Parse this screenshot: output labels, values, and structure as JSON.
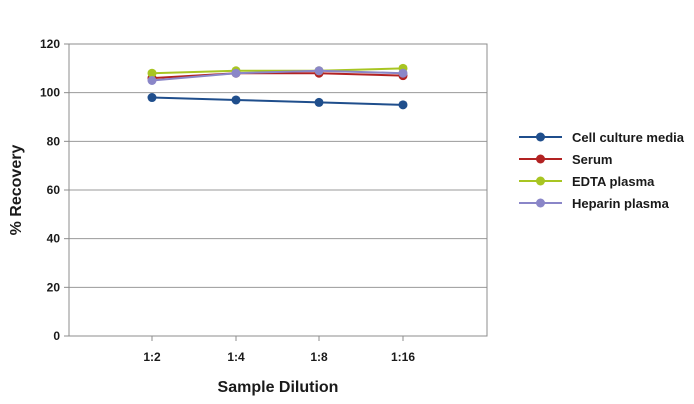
{
  "chart_data": {
    "type": "line",
    "title": "",
    "xlabel": "Sample Dilution",
    "ylabel": "% Recovery",
    "categories": [
      "1:2",
      "1:4",
      "1:8",
      "1:16"
    ],
    "ylim": [
      0,
      120
    ],
    "yticks": [
      "0",
      "20",
      "40",
      "60",
      "80",
      "100",
      "120"
    ],
    "grid": "horizontal",
    "legend_position": "right",
    "series": [
      {
        "name": "Cell culture media",
        "color": "#1f4e8c",
        "values": [
          98,
          97,
          96,
          95
        ]
      },
      {
        "name": "Serum",
        "color": "#b22222",
        "values": [
          106,
          108,
          108,
          107
        ]
      },
      {
        "name": "EDTA plasma",
        "color": "#a8c522",
        "values": [
          108,
          109,
          109,
          110
        ]
      },
      {
        "name": "Heparin plasma",
        "color": "#8a86c8",
        "values": [
          105,
          108,
          109,
          108
        ]
      }
    ]
  }
}
